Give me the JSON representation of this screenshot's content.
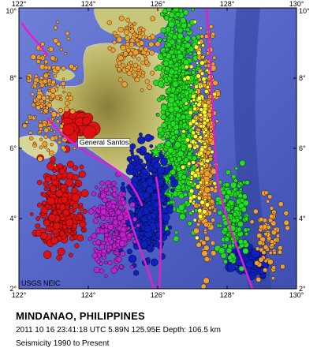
{
  "map": {
    "lon_range": [
      122,
      130
    ],
    "lat_range": [
      2,
      10
    ],
    "x_ticks": [
      {
        "lon": 122,
        "label": "122°"
      },
      {
        "lon": 124,
        "label": "124°"
      },
      {
        "lon": 126,
        "label": "126°"
      },
      {
        "lon": 128,
        "label": "128°"
      },
      {
        "lon": 130,
        "label": "130°"
      }
    ],
    "y_ticks": [
      {
        "lat": 10,
        "label": "10°"
      },
      {
        "lat": 8,
        "label": "8°"
      },
      {
        "lat": 6,
        "label": "6°"
      },
      {
        "lat": 4,
        "label": "4°"
      },
      {
        "lat": 2,
        "label": "2°"
      }
    ],
    "place_label": "General Santos",
    "place_location": {
      "lon": 124.2,
      "lat": 6.1
    },
    "epicenter": {
      "lon": 125.95,
      "lat": 5.89
    },
    "credit": "USGS NEIC",
    "colors": {
      "ocean": "#5566c8",
      "land_low": "#c9c77a",
      "land_high": "#8a7e3a",
      "plate_boundary": "#e020c8",
      "depth_0_33": "#e01010",
      "depth_33_70": "#f0a030",
      "depth_70_150": "#ffff30",
      "depth_150_300": "#20e020",
      "depth_300_500": "#1020c0",
      "depth_500_plus": "#c020d0",
      "epicenter_star": "#20e020"
    }
  },
  "caption": {
    "title": "MINDANAO, PHILIPPINES",
    "event": "2011 10 16 23:41:18 UTC 5.89N 125.95E Depth: 106.5 km",
    "subtitle": "Seismicity 1990 to Present"
  }
}
